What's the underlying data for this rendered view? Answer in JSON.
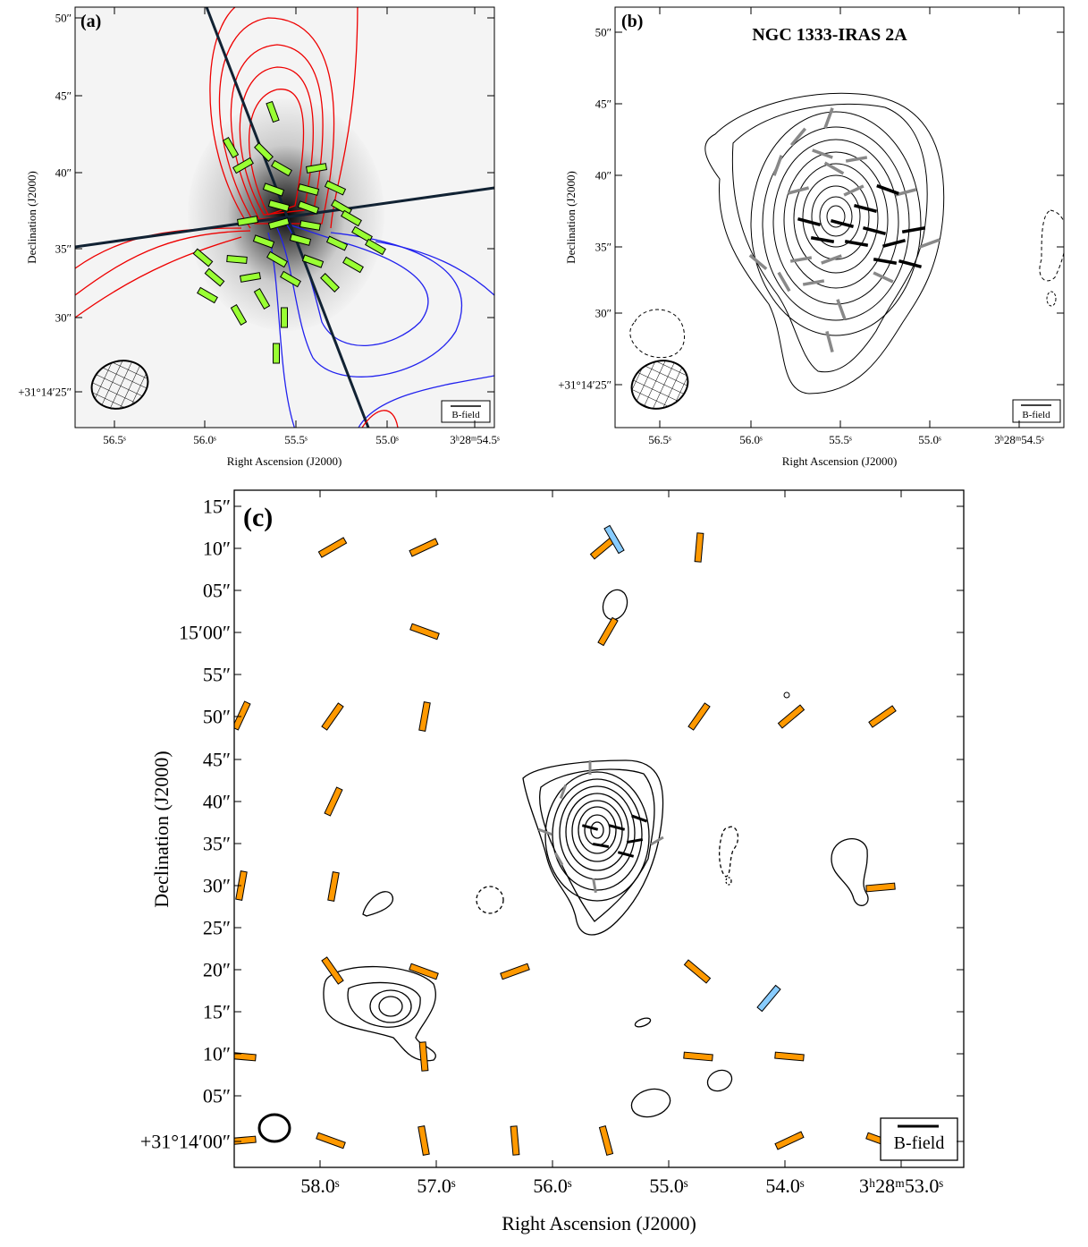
{
  "panel_a": {
    "label": "(a)",
    "x_ticks": [
      "56.5ˢ",
      "56.0ˢ",
      "55.5ˢ",
      "55.0ˢ",
      "3ʰ28ᵐ54.5ˢ"
    ],
    "y_ticks": [
      "50″",
      "45″",
      "40″",
      "35″",
      "30″",
      "+31°14′25″"
    ],
    "x_label": "Right Ascension (J2000)",
    "y_label": "Declination (J2000)",
    "legend": "B-field"
  },
  "panel_b": {
    "label": "(b)",
    "title": "NGC 1333-IRAS 2A",
    "x_ticks": [
      "56.5ˢ",
      "56.0ˢ",
      "55.5ˢ",
      "55.0ˢ",
      "3ʰ28ᵐ54.5ˢ"
    ],
    "y_ticks": [
      "50″",
      "45″",
      "40″",
      "35″",
      "30″",
      "+31°14′25″"
    ],
    "x_label": "Right Ascension (J2000)",
    "y_label": "Declination (J2000)",
    "legend": "B-field"
  },
  "panel_c": {
    "label": "(c)",
    "x_ticks": [
      "58.0ˢ",
      "57.0ˢ",
      "56.0ˢ",
      "55.0ˢ",
      "54.0ˢ",
      "3ʰ28ᵐ53.0ˢ"
    ],
    "y_ticks": [
      "15″",
      "10″",
      "05″",
      "15′00″",
      "55″",
      "50″",
      "45″",
      "40″",
      "35″",
      "30″",
      "25″",
      "20″",
      "15″",
      "10″",
      "05″",
      "+31°14′00″"
    ],
    "x_label": "Right Ascension (J2000)",
    "y_label": "Declination (J2000)",
    "legend": "B-field"
  }
}
